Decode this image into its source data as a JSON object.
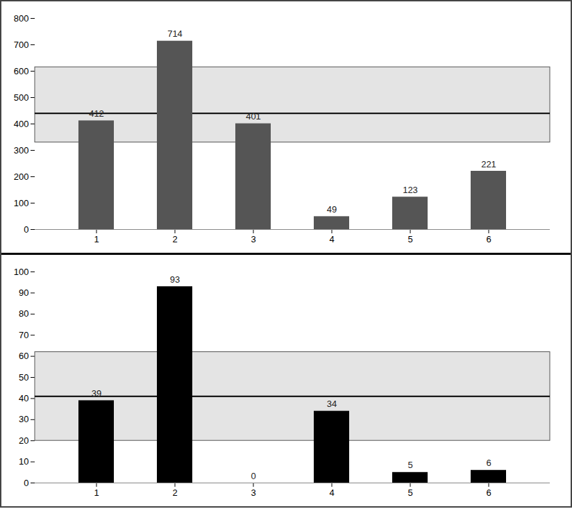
{
  "chart_data": [
    {
      "type": "bar",
      "categories": [
        "1",
        "2",
        "3",
        "4",
        "5",
        "6"
      ],
      "values": [
        412,
        714,
        401,
        49,
        123,
        221
      ],
      "color": "#555555",
      "data_labels": true,
      "ylim": [
        0,
        800
      ],
      "yticks": [
        0,
        100,
        200,
        300,
        400,
        500,
        600,
        700,
        800
      ],
      "reference_band": [
        330,
        615
      ],
      "reference_line": 440
    },
    {
      "type": "bar",
      "categories": [
        "1",
        "2",
        "3",
        "4",
        "5",
        "6"
      ],
      "values": [
        39,
        93,
        0,
        34,
        5,
        6
      ],
      "color": "#000000",
      "data_labels": true,
      "ylim": [
        0,
        100
      ],
      "yticks": [
        0,
        10,
        20,
        30,
        40,
        50,
        60,
        70,
        80,
        90,
        100
      ],
      "reference_band": [
        20,
        62
      ],
      "reference_line": 41
    }
  ]
}
